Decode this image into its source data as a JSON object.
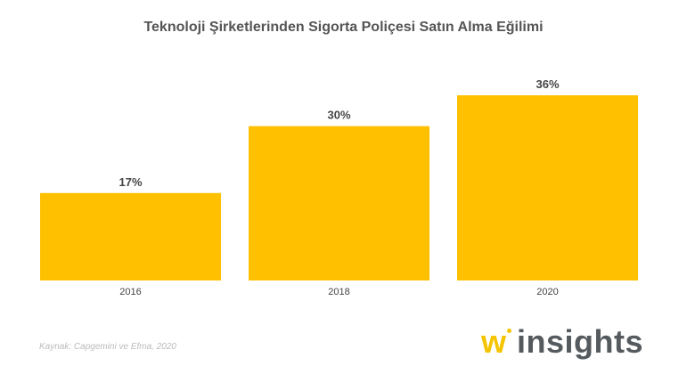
{
  "chart_data": {
    "type": "bar",
    "title": "Teknoloji Şirketlerinden Sigorta Poliçesi Satın Alma Eğilimi",
    "categories": [
      "2016",
      "2018",
      "2020"
    ],
    "values": [
      17,
      30,
      36
    ],
    "data_labels": [
      "17%",
      "30%",
      "36%"
    ],
    "unit": "%",
    "ylim": [
      0,
      36
    ],
    "grid": false,
    "bar_color": "#ffc000"
  },
  "source": "Kaynak: Capgemini ve Efma, 2020",
  "logo": {
    "text": "w insights",
    "accent_color": "#f5c400"
  }
}
